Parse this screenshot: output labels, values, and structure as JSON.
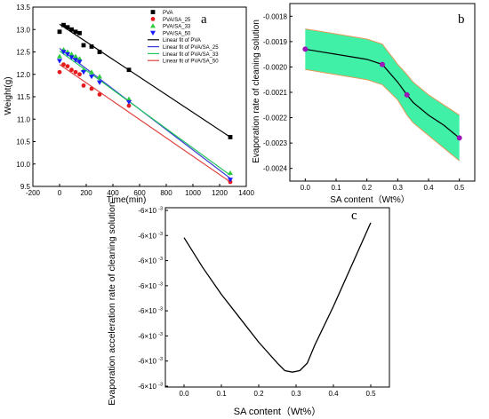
{
  "colors": {
    "pva": "#000000",
    "sa25": "#e41a1c",
    "sa33": "#2ecc40",
    "sa50": "#1a1aff",
    "fit_pva": "#000000",
    "fit_sa25": "#3a3ad8",
    "fit_sa33": "#22c55e",
    "fit_sa50": "#e0413c",
    "band_fill": "#3ff0a6",
    "band_edge": "#e39a5a",
    "marker_b": "#9b16b6"
  },
  "chart_data": [
    {
      "type": "scatter",
      "panel_label": "a",
      "xlabel": "Time(min)",
      "ylabel": "Weight(g)",
      "xlim": [
        -200,
        1400
      ],
      "ylim": [
        9.5,
        13.5
      ],
      "xticks": [
        "-200",
        "0",
        "200",
        "400",
        "600",
        "800",
        "1000",
        "1200",
        "1400"
      ],
      "yticks": [
        "9.5",
        "10.0",
        "10.5",
        "11.0",
        "11.5",
        "12.0",
        "12.5",
        "13.0",
        "13.5"
      ],
      "legend_position": "top-right",
      "legend": [
        "PVA",
        "PVA/SA_25",
        "PVA/SA_33",
        "PVA/SA_50",
        "Linear fit of PVA",
        "Linear fit of PVA/SA_25",
        "Linear fit of PVA/SA_33",
        "Linear fit of PVA/SA_50"
      ],
      "series": [
        {
          "name": "PVA",
          "marker": "square",
          "x": [
            0,
            30,
            60,
            90,
            120,
            150,
            180,
            240,
            300,
            520,
            1280
          ],
          "y": [
            12.95,
            13.1,
            13.05,
            13.0,
            12.95,
            12.92,
            12.65,
            12.62,
            12.5,
            12.1,
            10.6
          ]
        },
        {
          "name": "PVA/SA_25",
          "marker": "circle",
          "x": [
            0,
            30,
            60,
            90,
            120,
            150,
            180,
            240,
            300,
            520,
            1280
          ],
          "y": [
            12.05,
            12.22,
            12.18,
            12.1,
            12.05,
            12.0,
            11.75,
            11.68,
            11.55,
            11.3,
            9.6
          ]
        },
        {
          "name": "PVA/SA_33",
          "marker": "triangle-up",
          "x": [
            0,
            30,
            60,
            90,
            120,
            150,
            180,
            240,
            300,
            520,
            1280
          ],
          "y": [
            12.4,
            12.55,
            12.5,
            12.45,
            12.4,
            12.35,
            12.1,
            12.05,
            11.95,
            11.45,
            9.8
          ]
        },
        {
          "name": "PVA/SA_50",
          "marker": "triangle-down",
          "x": [
            0,
            30,
            60,
            90,
            120,
            150,
            180,
            240,
            300,
            520,
            1280
          ],
          "y": [
            12.3,
            12.5,
            12.45,
            12.38,
            12.32,
            12.28,
            12.05,
            11.95,
            11.82,
            11.38,
            9.65
          ]
        }
      ],
      "fits": [
        {
          "name": "Linear fit of PVA",
          "x": [
            0,
            1280
          ],
          "y": [
            13.12,
            10.6
          ]
        },
        {
          "name": "Linear fit of PVA/SA_25",
          "x": [
            0,
            1280
          ],
          "y": [
            12.58,
            9.68
          ]
        },
        {
          "name": "Linear fit of PVA/SA_33",
          "x": [
            0,
            1280
          ],
          "y": [
            12.52,
            9.75
          ]
        },
        {
          "name": "Linear fit of PVA/SA_50",
          "x": [
            0,
            1280
          ],
          "y": [
            12.22,
            9.6
          ]
        }
      ]
    },
    {
      "type": "line",
      "panel_label": "b",
      "xlabel": "SA content（Wt%）",
      "ylabel": "Evaporation rate of cleaning solution",
      "xlim": [
        -0.05,
        0.55
      ],
      "ylim": [
        -0.00245,
        -0.00175
      ],
      "xticks": [
        "0.0",
        "0.1",
        "0.2",
        "0.3",
        "0.4",
        "0.5"
      ],
      "yticks": [
        "-0.0018",
        "-0.0019",
        "-0.0020",
        "-0.0021",
        "-0.0022",
        "-0.0023",
        "-0.0024"
      ],
      "points": {
        "x": [
          0,
          0.25,
          0.33,
          0.5
        ],
        "y": [
          -0.00193,
          -0.00199,
          -0.00211,
          -0.00228
        ]
      },
      "curve": {
        "x": [
          0,
          0.05,
          0.1,
          0.15,
          0.2,
          0.25,
          0.3,
          0.33,
          0.35,
          0.4,
          0.45,
          0.5
        ],
        "y": [
          -0.00193,
          -0.00194,
          -0.00195,
          -0.00196,
          -0.00197,
          -0.00199,
          -0.00206,
          -0.00211,
          -0.00214,
          -0.00219,
          -0.00223,
          -0.00228
        ]
      },
      "band_upper": [
        -0.00185,
        -0.00186,
        -0.00187,
        -0.00188,
        -0.00189,
        -0.00191,
        -0.00199,
        -0.00203,
        -0.00206,
        -0.00211,
        -0.00215,
        -0.00219
      ],
      "band_lower": [
        -0.00201,
        -0.00202,
        -0.00203,
        -0.00204,
        -0.00205,
        -0.00207,
        -0.00213,
        -0.00219,
        -0.00222,
        -0.00227,
        -0.00232,
        -0.00237
      ]
    },
    {
      "type": "line",
      "panel_label": "c",
      "xlabel": "SA content（Wt%）",
      "ylabel": "Evaporation acceleration rate of cleaning solution",
      "xlim": [
        -0.05,
        0.55
      ],
      "ylim": [
        -0.00645,
        -0.00585
      ],
      "xticks": [
        "0.0",
        "0.1",
        "0.2",
        "0.3",
        "0.4",
        "0.5"
      ],
      "ytick_base": [
        "-6×10",
        "-6×10",
        "-6×10",
        "-6×10",
        "-6×10",
        "-6×10",
        "-6×10",
        "-6×10"
      ],
      "ytick_exp": "-3",
      "yticks_count": 8,
      "curve": {
        "x": [
          0,
          0.05,
          0.1,
          0.15,
          0.2,
          0.25,
          0.27,
          0.29,
          0.31,
          0.33,
          0.35,
          0.4,
          0.45,
          0.5
        ],
        "y": [
          -0.00595,
          -0.00605,
          -0.00614,
          -0.00622,
          -0.0063,
          -0.00637,
          -0.006395,
          -0.0064,
          -0.006395,
          -0.00637,
          -0.00631,
          -0.00618,
          -0.00604,
          -0.0059
        ]
      }
    }
  ]
}
